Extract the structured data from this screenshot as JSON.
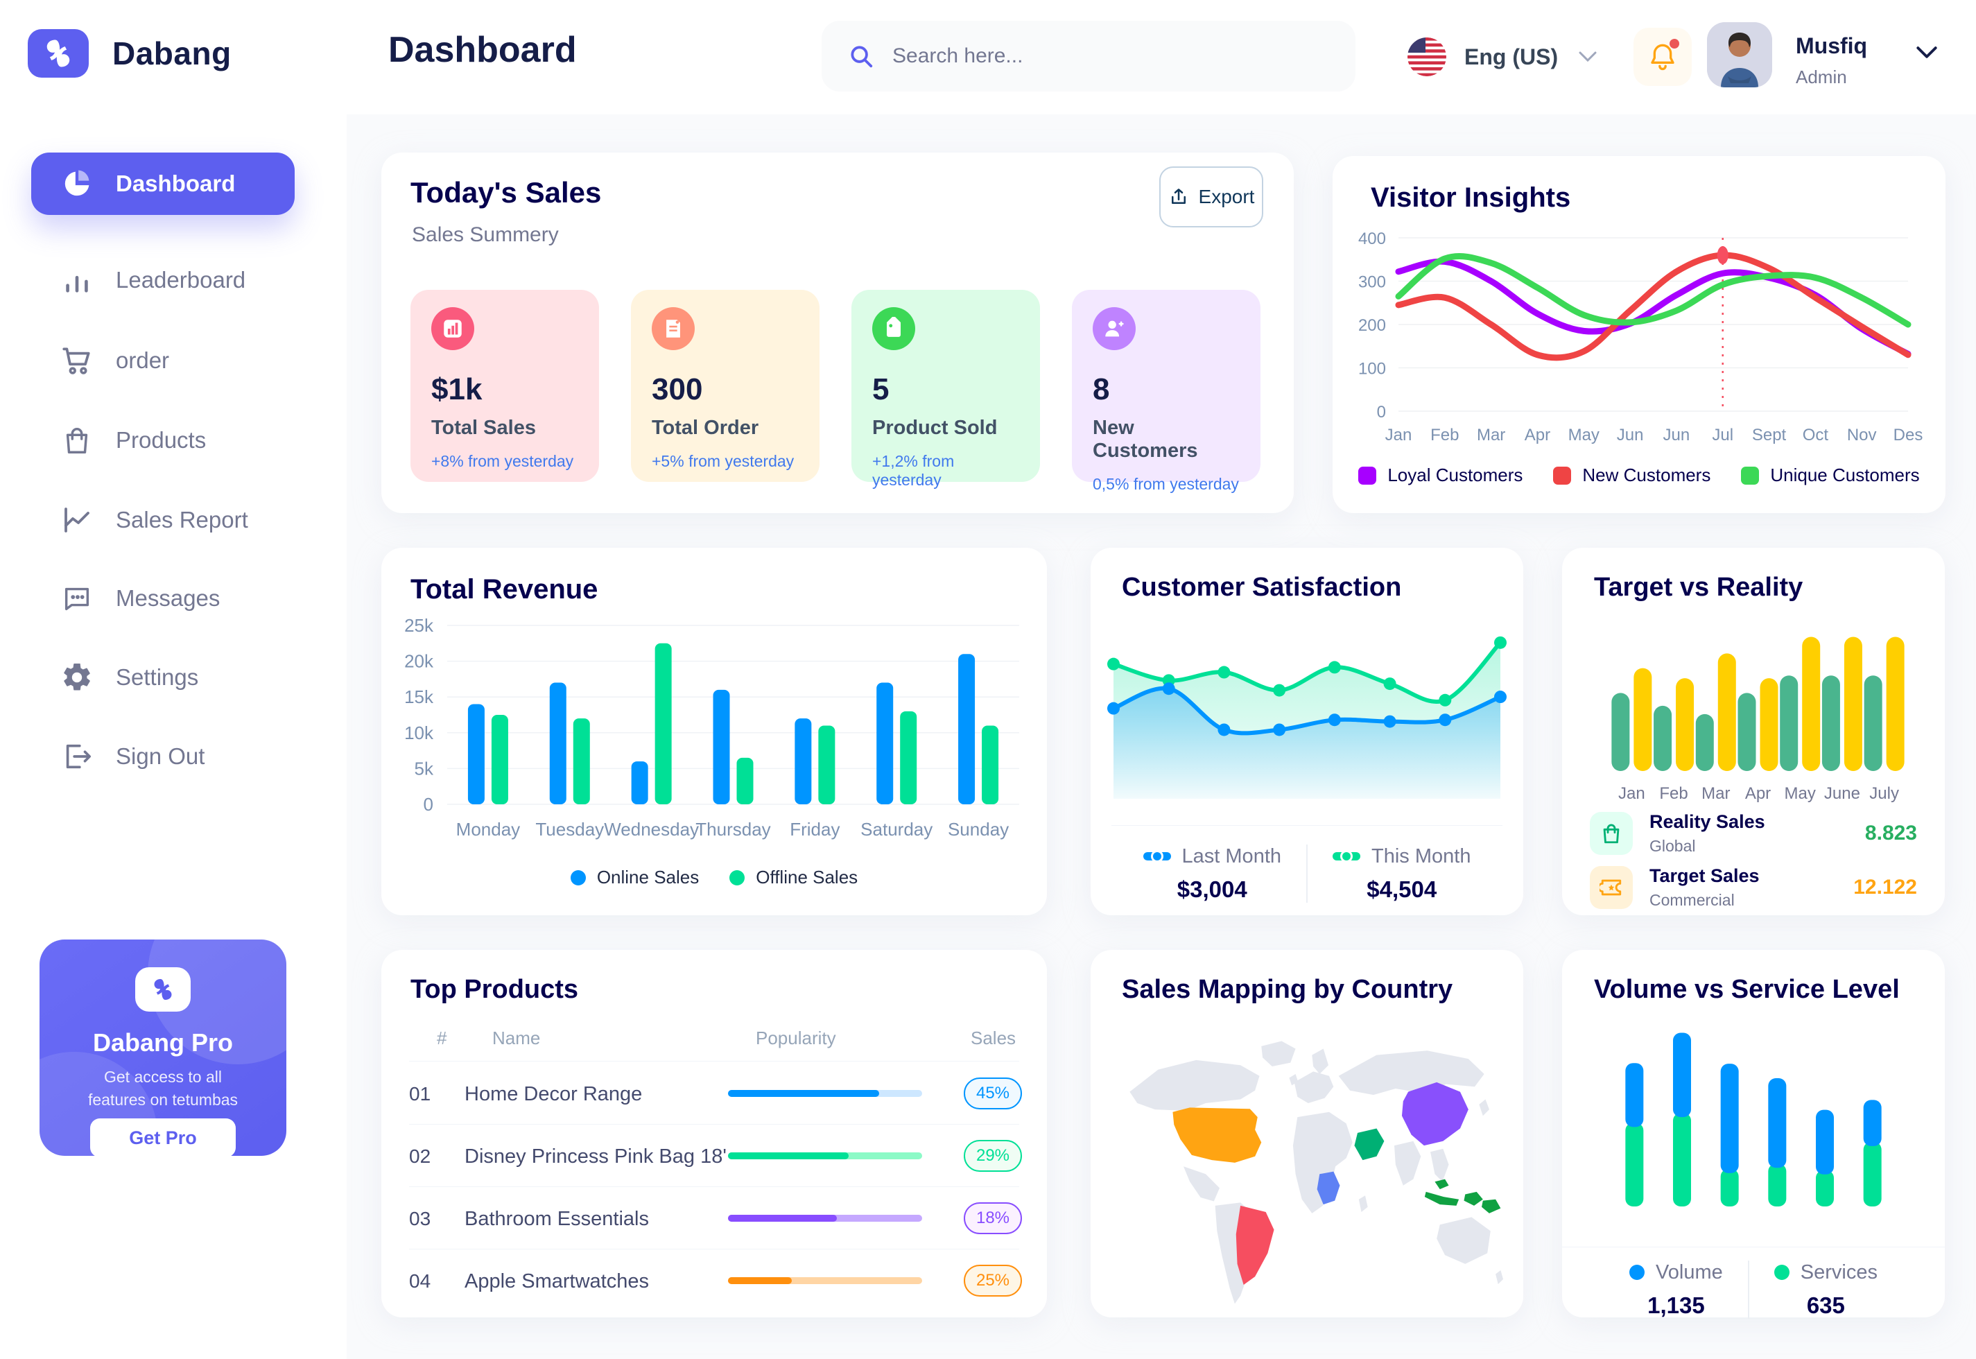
{
  "app": {
    "brand": "Dabang"
  },
  "sidebar": {
    "items": [
      {
        "label": "Dashboard",
        "icon": "pie-chart",
        "active": true
      },
      {
        "label": "Leaderboard",
        "icon": "bar-chart"
      },
      {
        "label": "order",
        "icon": "cart"
      },
      {
        "label": "Products",
        "icon": "bag"
      },
      {
        "label": "Sales Report",
        "icon": "line-chart"
      },
      {
        "label": "Messages",
        "icon": "message"
      },
      {
        "label": "Settings",
        "icon": "gear"
      },
      {
        "label": "Sign Out",
        "icon": "sign-out"
      }
    ],
    "pro": {
      "title": "Dabang Pro",
      "desc_line1": "Get access to all",
      "desc_line2": "features on tetumbas",
      "button": "Get Pro"
    }
  },
  "header": {
    "title": "Dashboard",
    "search_placeholder": "Search here...",
    "language": "Eng (US)",
    "user_name": "Musfiq",
    "user_role": "Admin"
  },
  "today_sales": {
    "title": "Today's Sales",
    "subtitle": "Sales Summery",
    "export_label": "Export",
    "stats": [
      {
        "value": "$1k",
        "label": "Total Sales",
        "delta": "+8% from yesterday",
        "bg": "#FFE2E5",
        "icon_bg": "#FA5A7D",
        "icon": "stat-chart"
      },
      {
        "value": "300",
        "label": "Total Order",
        "delta": "+5% from yesterday",
        "bg": "#FFF4DE",
        "icon_bg": "#FF947A",
        "icon": "stat-receipt"
      },
      {
        "value": "5",
        "label": "Product Sold",
        "delta": "+1,2% from yesterday",
        "bg": "#DCFCE7",
        "icon_bg": "#3CD856",
        "icon": "stat-tag"
      },
      {
        "value": "8",
        "label": "New Customers",
        "delta": "0,5% from yesterday",
        "bg": "#F3E8FF",
        "icon_bg": "#BF83FF",
        "icon": "stat-user"
      }
    ]
  },
  "chart_data": [
    {
      "id": "visitor_insights",
      "type": "line",
      "title": "Visitor Insights",
      "x_labels": [
        "Jan",
        "Feb",
        "Mar",
        "Apr",
        "May",
        "Jun",
        "Jun",
        "Jul",
        "Sept",
        "Oct",
        "Nov",
        "Des"
      ],
      "y_ticks": [
        0,
        100,
        200,
        300,
        400
      ],
      "ylim": [
        0,
        400
      ],
      "legend_position": "bottom",
      "series": [
        {
          "name": "Loyal Customers",
          "color": "#A700FF",
          "values": [
            322,
            345,
            300,
            225,
            185,
            202,
            268,
            318,
            308,
            268,
            190,
            132
          ]
        },
        {
          "name": "New Customers",
          "color": "#EF4444",
          "values": [
            245,
            262,
            200,
            130,
            138,
            232,
            322,
            360,
            330,
            262,
            195,
            130
          ]
        },
        {
          "name": "Unique Customers",
          "color": "#3CD856",
          "values": [
            265,
            352,
            342,
            285,
            222,
            205,
            232,
            292,
            312,
            308,
            262,
            200
          ]
        }
      ],
      "marker": {
        "series": "New Customers",
        "x_index": 7,
        "value": 360
      }
    },
    {
      "id": "total_revenue",
      "type": "bar",
      "title": "Total Revenue",
      "categories": [
        "Monday",
        "Tuesday",
        "Wednesday",
        "Thursday",
        "Friday",
        "Saturday",
        "Sunday"
      ],
      "y_tick_labels": [
        "0",
        "5k",
        "10k",
        "15k",
        "20k",
        "25k"
      ],
      "ylim": [
        0,
        25000
      ],
      "series": [
        {
          "name": "Online Sales",
          "color": "#0095FF",
          "values": [
            14000,
            17000,
            6000,
            16000,
            12000,
            17000,
            21000
          ]
        },
        {
          "name": "Offline Sales",
          "color": "#00E096",
          "values": [
            12500,
            12000,
            22500,
            6500,
            11000,
            13000,
            11000
          ]
        }
      ]
    },
    {
      "id": "customer_satisfaction",
      "type": "area",
      "title": "Customer Satisfaction",
      "ylim": [
        0,
        100
      ],
      "series": [
        {
          "name": "Last Month",
          "color": "#0095FF",
          "total": "$3,004",
          "values": [
            55,
            67,
            42,
            42,
            48,
            47,
            48,
            62
          ]
        },
        {
          "name": "This Month",
          "color": "#00E096",
          "total": "$4,504",
          "values": [
            82,
            72,
            77,
            66,
            80,
            70,
            60,
            95
          ]
        }
      ]
    },
    {
      "id": "target_vs_reality",
      "type": "bar",
      "title": "Target vs Reality",
      "categories": [
        "Jan",
        "Feb",
        "Mar",
        "Apr",
        "May",
        "June",
        "July"
      ],
      "ylim": [
        0,
        16
      ],
      "series": [
        {
          "name": "Reality Sales",
          "subtitle": "Global",
          "color": "#4AB58E",
          "icon_bg": "#E2FFF3",
          "value_label": "8.823",
          "value_color": "#27AE60",
          "values": [
            8.5,
            7.1,
            6.2,
            8.5,
            10.4,
            10.4,
            10.4
          ]
        },
        {
          "name": "Target Sales",
          "subtitle": "Commercial",
          "color": "#FFCF00",
          "icon_bg": "#FFF2D8",
          "value_label": "12.122",
          "value_color": "#FFA412",
          "values": [
            11.2,
            10.1,
            12.8,
            10.1,
            14.6,
            14.6,
            14.6
          ]
        }
      ]
    },
    {
      "id": "top_products",
      "type": "table",
      "title": "Top Products",
      "columns": [
        "#",
        "Name",
        "Popularity",
        "Sales"
      ],
      "rows": [
        {
          "no": "01",
          "name": "Home Decor Range",
          "popularity": 78,
          "sales": "45%",
          "color": "#0095FF",
          "track": "#CDE7FF",
          "badge_bg": "#F0F9FF"
        },
        {
          "no": "02",
          "name": "Disney Princess Pink Bag 18'",
          "popularity": 62,
          "sales": "29%",
          "color": "#00E096",
          "track": "#8CFAC7",
          "badge_bg": "#F0FDF4"
        },
        {
          "no": "03",
          "name": "Bathroom Essentials",
          "popularity": 56,
          "sales": "18%",
          "color": "#884DFF",
          "track": "#C5A8FF",
          "badge_bg": "#FBF1FF"
        },
        {
          "no": "04",
          "name": "Apple Smartwatches",
          "popularity": 33,
          "sales": "25%",
          "color": "#FF8F0D",
          "track": "#FFD5A4",
          "badge_bg": "#FEF6E6"
        }
      ]
    },
    {
      "id": "sales_mapping",
      "type": "map",
      "title": "Sales Mapping by Country",
      "countries": [
        {
          "name": "United States",
          "color": "#FFA412"
        },
        {
          "name": "Brazil",
          "color": "#F64E60"
        },
        {
          "name": "Saudi Arabia",
          "color": "#00B074"
        },
        {
          "name": "Congo",
          "color": "#5E81F4"
        },
        {
          "name": "China",
          "color": "#8950FC"
        },
        {
          "name": "Indonesia",
          "color": "#10A142"
        }
      ]
    },
    {
      "id": "volume_vs_service",
      "type": "bar-stacked",
      "title": "Volume vs Service Level",
      "series": [
        {
          "name": "Volume",
          "color": "#0095FF",
          "total": "1,135",
          "values": [
            97,
            128,
            166,
            136,
            98,
            70
          ]
        },
        {
          "name": "Services",
          "color": "#00E096",
          "total": "635",
          "values": [
            127,
            142,
            57,
            65,
            55,
            98
          ]
        }
      ]
    }
  ]
}
